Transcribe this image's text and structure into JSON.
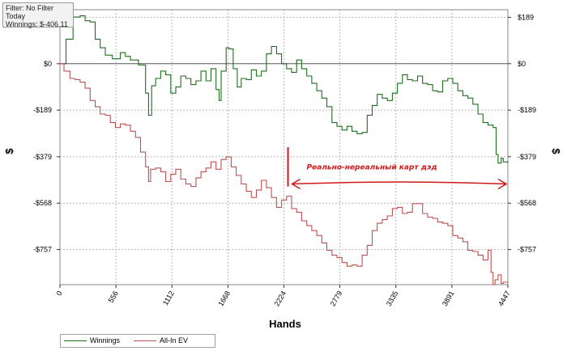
{
  "info_box": {
    "filter": "Filter: No Filter",
    "period": "Today",
    "winnings": "Winnings: $-406.11"
  },
  "colors": {
    "winnings": "#1f6e1f",
    "allin_ev": "#c05050",
    "annotation": "#d01818",
    "grid": "#b8b8b8",
    "zero_line": "#555555"
  },
  "chart_data": {
    "type": "line",
    "xlabel": "Hands",
    "ylabel_left": "$",
    "ylabel_right": "$",
    "xlim": [
      0,
      4447
    ],
    "ylim": [
      -900,
      220
    ],
    "x_ticks": [
      0,
      556,
      1112,
      1668,
      2224,
      2779,
      3335,
      3891,
      4447
    ],
    "x_tick_labels": [
      "0",
      "556",
      "1112",
      "1668",
      "2224",
      "2779",
      "3335",
      "3891",
      "4447"
    ],
    "y_ticks": [
      189,
      0,
      -189,
      -379,
      -568,
      -757
    ],
    "y_tick_labels": [
      "$189",
      "$0",
      "-$189",
      "-$379",
      "-$568",
      "-$757"
    ],
    "grid": true,
    "legend_position": "bottom-left",
    "series": [
      {
        "name": "Winnings",
        "color": "#1f6e1f",
        "points": [
          [
            0,
            0
          ],
          [
            60,
            100
          ],
          [
            130,
            190
          ],
          [
            200,
            195
          ],
          [
            250,
            175
          ],
          [
            300,
            170
          ],
          [
            350,
            100
          ],
          [
            400,
            65
          ],
          [
            450,
            35
          ],
          [
            520,
            20
          ],
          [
            600,
            45
          ],
          [
            650,
            30
          ],
          [
            700,
            15
          ],
          [
            780,
            -5
          ],
          [
            850,
            -120
          ],
          [
            880,
            -210
          ],
          [
            910,
            -90
          ],
          [
            950,
            -60
          ],
          [
            1000,
            -30
          ],
          [
            1050,
            -45
          ],
          [
            1100,
            -120
          ],
          [
            1150,
            -95
          ],
          [
            1200,
            -50
          ],
          [
            1250,
            -60
          ],
          [
            1300,
            -85
          ],
          [
            1350,
            -70
          ],
          [
            1400,
            -30
          ],
          [
            1450,
            -70
          ],
          [
            1500,
            -20
          ],
          [
            1550,
            -105
          ],
          [
            1580,
            -150
          ],
          [
            1600,
            -30
          ],
          [
            1650,
            65
          ],
          [
            1680,
            60
          ],
          [
            1720,
            -20
          ],
          [
            1760,
            -95
          ],
          [
            1800,
            -60
          ],
          [
            1850,
            -65
          ],
          [
            1900,
            -25
          ],
          [
            1950,
            -50
          ],
          [
            2000,
            -30
          ],
          [
            2050,
            40
          ],
          [
            2100,
            70
          ],
          [
            2150,
            40
          ],
          [
            2200,
            0
          ],
          [
            2250,
            -20
          ],
          [
            2300,
            -35
          ],
          [
            2350,
            15
          ],
          [
            2400,
            -20
          ],
          [
            2450,
            -50
          ],
          [
            2500,
            -80
          ],
          [
            2550,
            -110
          ],
          [
            2600,
            -140
          ],
          [
            2650,
            -175
          ],
          [
            2700,
            -240
          ],
          [
            2750,
            -255
          ],
          [
            2800,
            -270
          ],
          [
            2850,
            -255
          ],
          [
            2900,
            -275
          ],
          [
            2950,
            -285
          ],
          [
            3000,
            -280
          ],
          [
            3050,
            -210
          ],
          [
            3100,
            -170
          ],
          [
            3150,
            -125
          ],
          [
            3200,
            -140
          ],
          [
            3250,
            -150
          ],
          [
            3300,
            -120
          ],
          [
            3350,
            -80
          ],
          [
            3400,
            -45
          ],
          [
            3450,
            -65
          ],
          [
            3500,
            -70
          ],
          [
            3550,
            -50
          ],
          [
            3600,
            -80
          ],
          [
            3650,
            -85
          ],
          [
            3700,
            -110
          ],
          [
            3750,
            -115
          ],
          [
            3800,
            -70
          ],
          [
            3850,
            -60
          ],
          [
            3900,
            -80
          ],
          [
            3950,
            -110
          ],
          [
            4000,
            -130
          ],
          [
            4050,
            -140
          ],
          [
            4100,
            -165
          ],
          [
            4150,
            -205
          ],
          [
            4200,
            -240
          ],
          [
            4250,
            -250
          ],
          [
            4300,
            -260
          ],
          [
            4330,
            -370
          ],
          [
            4350,
            -405
          ],
          [
            4380,
            -385
          ],
          [
            4400,
            -400
          ],
          [
            4447,
            -406
          ]
        ]
      },
      {
        "name": "All-In EV",
        "color": "#c05050",
        "points": [
          [
            0,
            0
          ],
          [
            40,
            -30
          ],
          [
            100,
            -60
          ],
          [
            150,
            -65
          ],
          [
            200,
            -75
          ],
          [
            250,
            -100
          ],
          [
            300,
            -150
          ],
          [
            350,
            -175
          ],
          [
            400,
            -205
          ],
          [
            450,
            -210
          ],
          [
            500,
            -240
          ],
          [
            550,
            -260
          ],
          [
            600,
            -245
          ],
          [
            650,
            -250
          ],
          [
            700,
            -275
          ],
          [
            750,
            -300
          ],
          [
            800,
            -360
          ],
          [
            850,
            -420
          ],
          [
            880,
            -480
          ],
          [
            900,
            -430
          ],
          [
            950,
            -425
          ],
          [
            1000,
            -440
          ],
          [
            1050,
            -480
          ],
          [
            1100,
            -450
          ],
          [
            1150,
            -430
          ],
          [
            1200,
            -470
          ],
          [
            1250,
            -490
          ],
          [
            1300,
            -500
          ],
          [
            1350,
            -465
          ],
          [
            1400,
            -440
          ],
          [
            1450,
            -425
          ],
          [
            1500,
            -400
          ],
          [
            1550,
            -430
          ],
          [
            1600,
            -390
          ],
          [
            1650,
            -380
          ],
          [
            1700,
            -420
          ],
          [
            1750,
            -455
          ],
          [
            1800,
            -490
          ],
          [
            1850,
            -520
          ],
          [
            1900,
            -545
          ],
          [
            1950,
            -515
          ],
          [
            2000,
            -475
          ],
          [
            2050,
            -505
          ],
          [
            2100,
            -545
          ],
          [
            2150,
            -585
          ],
          [
            2200,
            -555
          ],
          [
            2250,
            -540
          ],
          [
            2300,
            -590
          ],
          [
            2350,
            -605
          ],
          [
            2400,
            -640
          ],
          [
            2450,
            -660
          ],
          [
            2500,
            -680
          ],
          [
            2550,
            -700
          ],
          [
            2600,
            -730
          ],
          [
            2650,
            -760
          ],
          [
            2700,
            -780
          ],
          [
            2750,
            -790
          ],
          [
            2800,
            -810
          ],
          [
            2850,
            -825
          ],
          [
            2900,
            -820
          ],
          [
            2950,
            -825
          ],
          [
            3000,
            -780
          ],
          [
            3050,
            -740
          ],
          [
            3100,
            -680
          ],
          [
            3150,
            -650
          ],
          [
            3200,
            -635
          ],
          [
            3250,
            -620
          ],
          [
            3300,
            -590
          ],
          [
            3350,
            -585
          ],
          [
            3400,
            -610
          ],
          [
            3450,
            -605
          ],
          [
            3500,
            -570
          ],
          [
            3550,
            -570
          ],
          [
            3600,
            -610
          ],
          [
            3650,
            -625
          ],
          [
            3700,
            -630
          ],
          [
            3750,
            -645
          ],
          [
            3800,
            -650
          ],
          [
            3850,
            -660
          ],
          [
            3900,
            -700
          ],
          [
            3950,
            -710
          ],
          [
            4000,
            -725
          ],
          [
            4050,
            -760
          ],
          [
            4100,
            -765
          ],
          [
            4150,
            -780
          ],
          [
            4200,
            -800
          ],
          [
            4250,
            -760
          ],
          [
            4280,
            -850
          ],
          [
            4300,
            -900
          ],
          [
            4320,
            -880
          ],
          [
            4350,
            -860
          ],
          [
            4380,
            -895
          ],
          [
            4400,
            -890
          ],
          [
            4447,
            -890
          ]
        ]
      }
    ],
    "annotation": {
      "text": "Реально-нереальный карт дэд",
      "vertical_marker_x": 2224,
      "arrow_from_x": 2224,
      "arrow_to_x": 4447,
      "arrow_y": -490
    }
  }
}
